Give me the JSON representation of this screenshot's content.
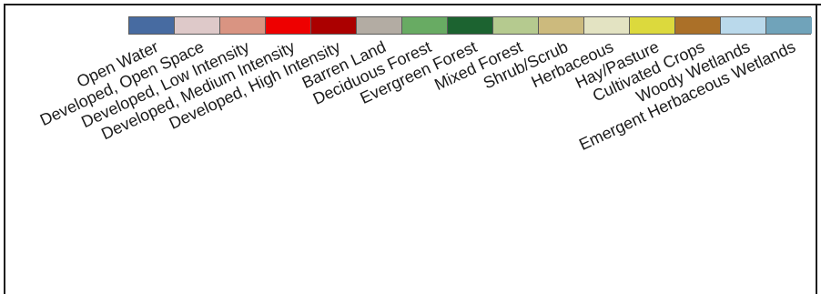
{
  "legend": {
    "classes": [
      {
        "label": "Open Water",
        "color": "#476ba1"
      },
      {
        "label": "Developed, Open Space",
        "color": "#dec9c9"
      },
      {
        "label": "Developed, Low Intensity",
        "color": "#d99482"
      },
      {
        "label": "Developed, Medium Intensity",
        "color": "#ee0000"
      },
      {
        "label": "Developed, High Intensity",
        "color": "#ab0000"
      },
      {
        "label": "Barren Land",
        "color": "#b3aca3"
      },
      {
        "label": "Deciduous Forest",
        "color": "#68ab63"
      },
      {
        "label": "Evergreen Forest",
        "color": "#1c6330"
      },
      {
        "label": "Mixed Forest",
        "color": "#b5ca8f"
      },
      {
        "label": "Shrub/Scrub",
        "color": "#ccba7d"
      },
      {
        "label": "Herbaceous",
        "color": "#e3e3c2"
      },
      {
        "label": "Hay/Pasture",
        "color": "#dcd93d"
      },
      {
        "label": "Cultivated Crops",
        "color": "#ab7028"
      },
      {
        "label": "Woody Wetlands",
        "color": "#bad9eb"
      },
      {
        "label": "Emergent Herbaceous Wetlands",
        "color": "#70a3ba"
      }
    ]
  }
}
